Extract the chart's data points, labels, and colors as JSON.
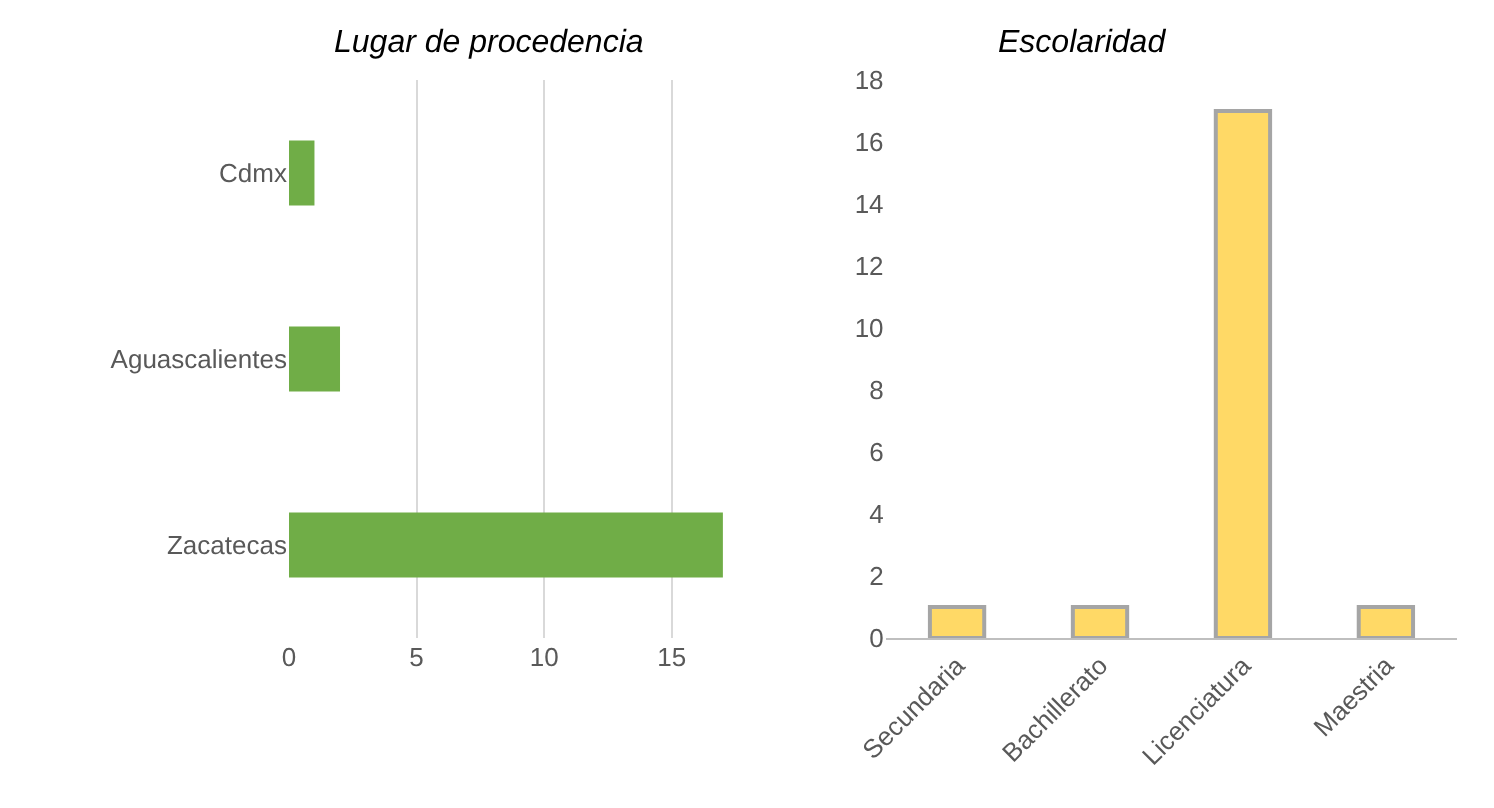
{
  "chart_data": [
    {
      "type": "bar",
      "title": "Lugar de procedencia",
      "orientation": "horizontal",
      "categories": [
        "Cdmx",
        "Aguascalientes",
        "Zacatecas"
      ],
      "values": [
        1,
        2,
        17
      ],
      "color": "#70ad47",
      "xlim": [
        0,
        17
      ],
      "xticks": [
        0,
        5,
        10,
        15
      ],
      "grid": "x"
    },
    {
      "type": "bar",
      "title": "Escolaridad",
      "categories": [
        "Secundaria",
        "Bachillerato",
        "Licenciatura",
        "Maestria"
      ],
      "values": [
        1,
        1,
        17,
        1
      ],
      "color": "#ffd966",
      "ylim": [
        0,
        18
      ],
      "yticks": [
        0,
        2,
        4,
        6,
        8,
        10,
        12,
        14,
        16,
        18
      ],
      "grid": false
    }
  ]
}
